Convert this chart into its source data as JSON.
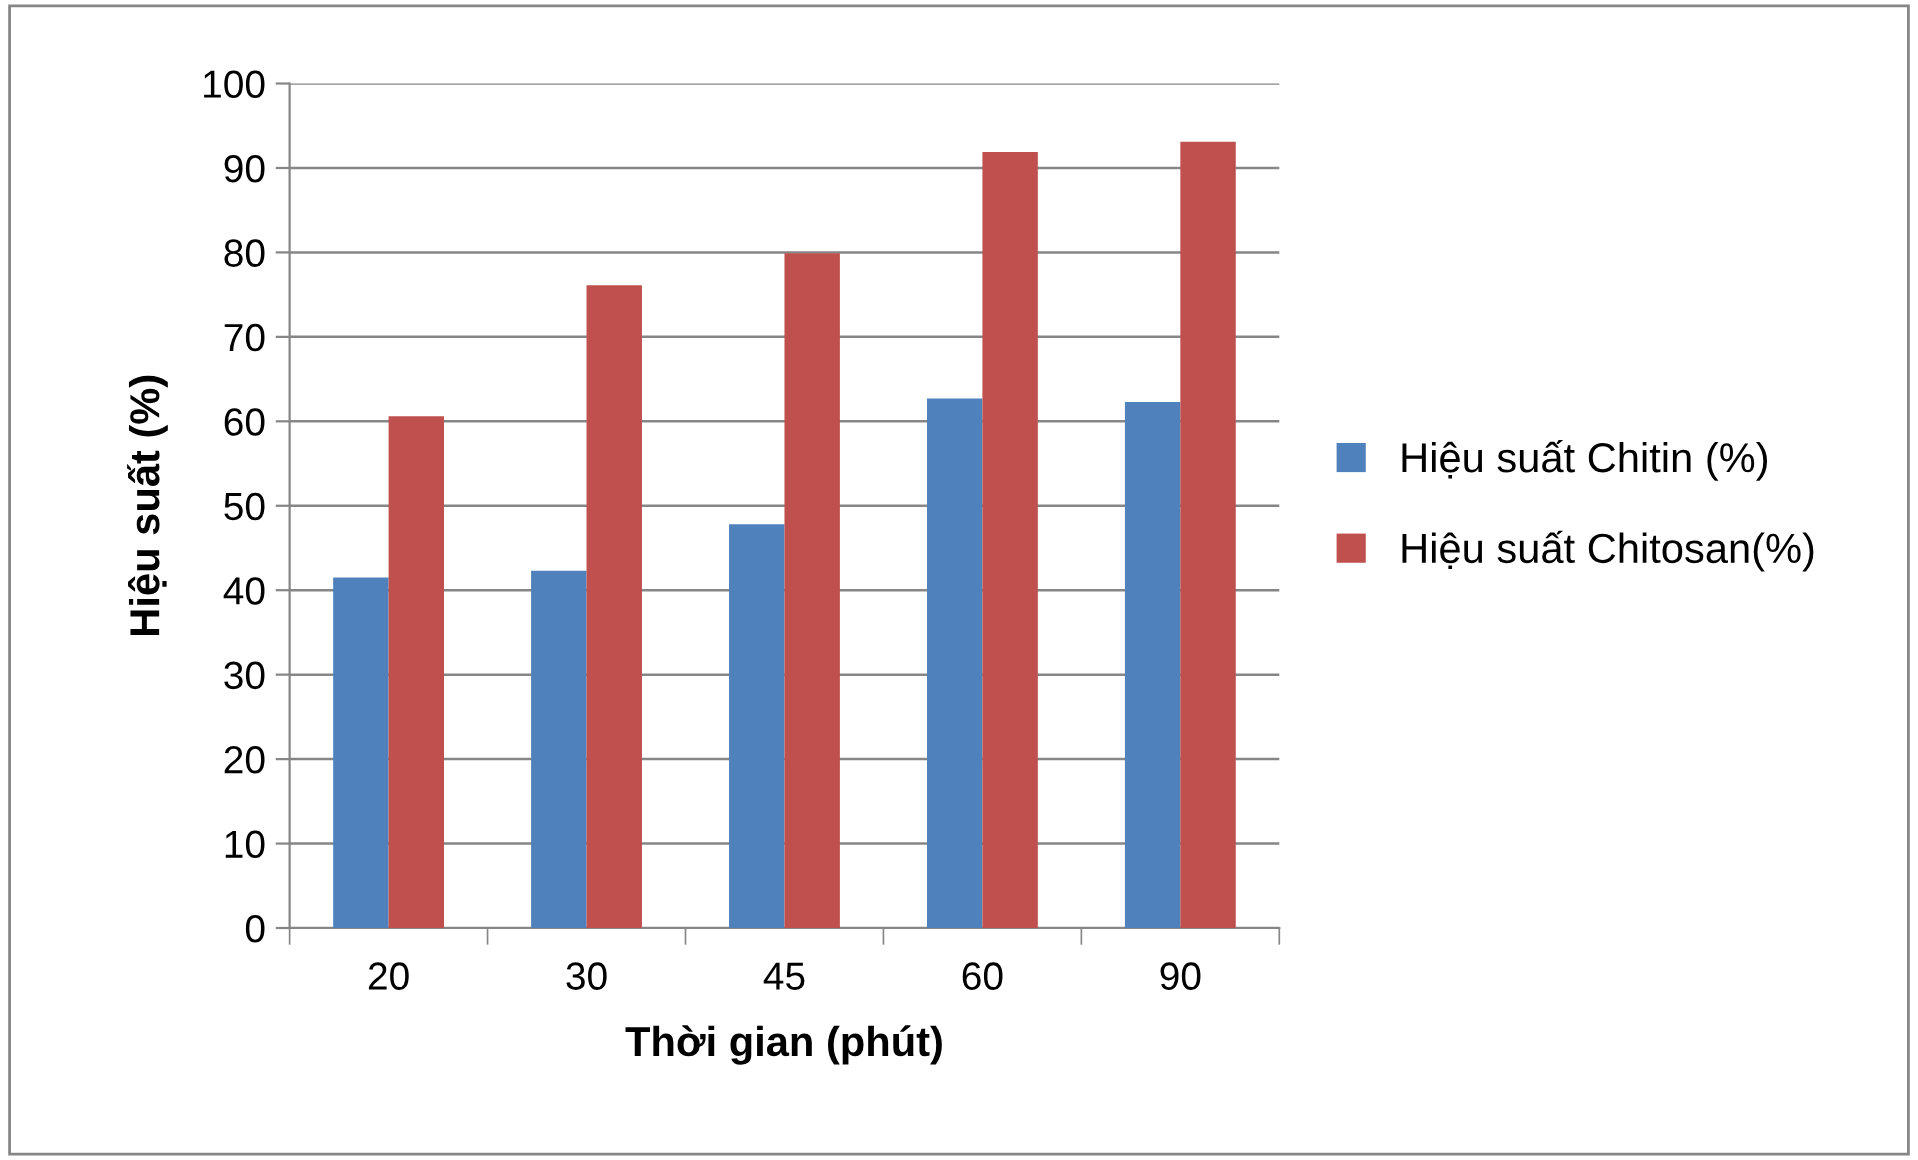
{
  "chart_data": {
    "type": "bar",
    "xlabel": "Thời gian (phút)",
    "ylabel": "Hiệu suất (%)",
    "categories": [
      "20",
      "30",
      "45",
      "60",
      "90"
    ],
    "series": [
      {
        "name": "Hiệu suất Chitin (%)",
        "color": "#4f81bd",
        "values": [
          41.5,
          42.3,
          47.8,
          62.7,
          62.3
        ]
      },
      {
        "name": "Hiệu suất Chitosan(%)",
        "color": "#c0504d",
        "values": [
          60.6,
          76.1,
          79.9,
          91.9,
          93.1
        ]
      }
    ],
    "ylim": [
      0,
      100
    ],
    "yticks": [
      0,
      10,
      20,
      30,
      40,
      50,
      60,
      70,
      80,
      90,
      100
    ],
    "grid": "y",
    "legend": "right"
  }
}
